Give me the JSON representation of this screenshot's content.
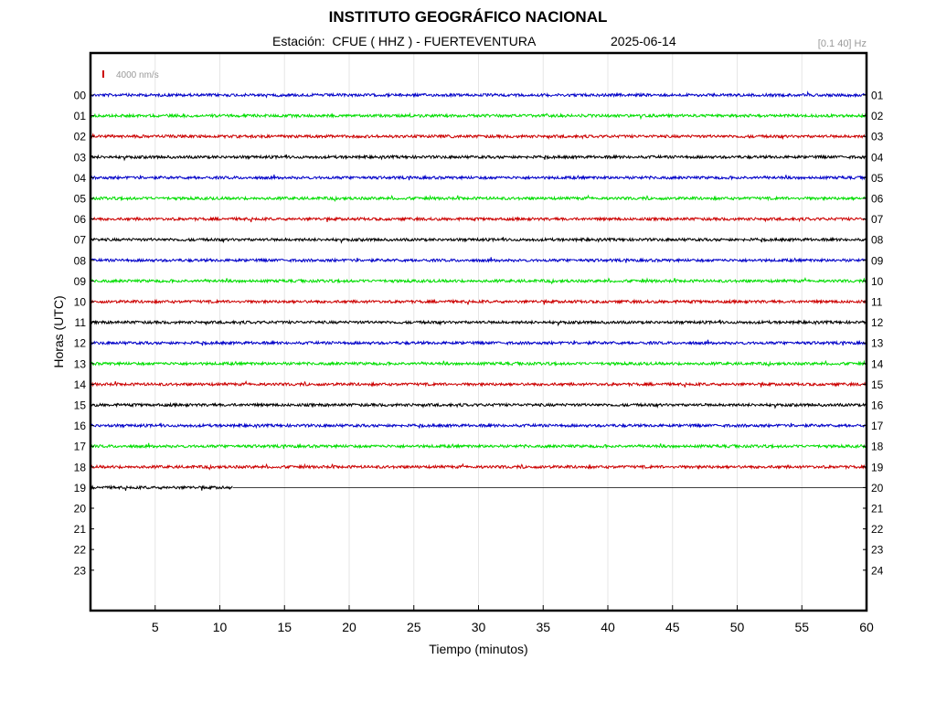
{
  "header": {
    "title": "INSTITUTO GEOGRÁFICO NACIONAL",
    "station_label": "Estación:",
    "station_name": "CFUE ( HHZ ) - FUERTEVENTURA",
    "date": "2025-06-14",
    "filter": "[0.1 40] Hz"
  },
  "colors": {
    "blue": "#0000c8",
    "green": "#00dd00",
    "red": "#cc0000",
    "black": "#000000",
    "scale_bar": "#cc0000"
  },
  "chart_data": {
    "type": "line",
    "title": "INSTITUTO GEOGRÁFICO NACIONAL",
    "xlabel": "Tiempo (minutos)",
    "ylabel": "Horas (UTC)",
    "xlim": [
      0,
      60
    ],
    "x_ticks": [
      5,
      10,
      15,
      20,
      25,
      30,
      35,
      40,
      45,
      50,
      55,
      60
    ],
    "left_tick_labels": [
      "00",
      "01",
      "02",
      "03",
      "04",
      "05",
      "06",
      "07",
      "08",
      "09",
      "10",
      "11",
      "12",
      "13",
      "14",
      "15",
      "16",
      "17",
      "18",
      "19",
      "20",
      "21",
      "22",
      "23"
    ],
    "right_tick_labels": [
      "01",
      "02",
      "03",
      "04",
      "05",
      "06",
      "07",
      "08",
      "09",
      "10",
      "11",
      "12",
      "13",
      "14",
      "15",
      "16",
      "17",
      "18",
      "19",
      "20",
      "21",
      "22",
      "23",
      "24"
    ],
    "scale_bar_label": "4000 nm/s",
    "grid": "vertical",
    "series": [
      {
        "hour": "00",
        "color": "blue",
        "end_minute": 60
      },
      {
        "hour": "01",
        "color": "green",
        "end_minute": 60
      },
      {
        "hour": "02",
        "color": "red",
        "end_minute": 60
      },
      {
        "hour": "03",
        "color": "black",
        "end_minute": 60
      },
      {
        "hour": "04",
        "color": "blue",
        "end_minute": 60
      },
      {
        "hour": "05",
        "color": "green",
        "end_minute": 60
      },
      {
        "hour": "06",
        "color": "red",
        "end_minute": 60
      },
      {
        "hour": "07",
        "color": "black",
        "end_minute": 60
      },
      {
        "hour": "08",
        "color": "blue",
        "end_minute": 60
      },
      {
        "hour": "09",
        "color": "green",
        "end_minute": 60
      },
      {
        "hour": "10",
        "color": "red",
        "end_minute": 60
      },
      {
        "hour": "11",
        "color": "black",
        "end_minute": 60
      },
      {
        "hour": "12",
        "color": "blue",
        "end_minute": 60
      },
      {
        "hour": "13",
        "color": "green",
        "end_minute": 60
      },
      {
        "hour": "14",
        "color": "red",
        "end_minute": 60
      },
      {
        "hour": "15",
        "color": "black",
        "end_minute": 60
      },
      {
        "hour": "16",
        "color": "blue",
        "end_minute": 60
      },
      {
        "hour": "17",
        "color": "green",
        "end_minute": 60
      },
      {
        "hour": "18",
        "color": "red",
        "end_minute": 60
      },
      {
        "hour": "19",
        "color": "black",
        "end_minute": 11
      }
    ]
  }
}
